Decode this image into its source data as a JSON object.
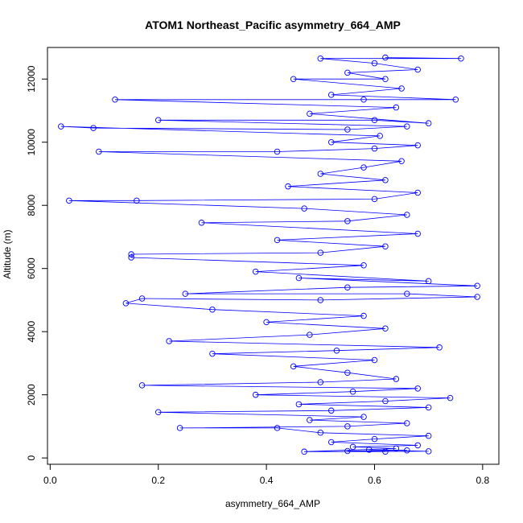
{
  "chart_data": {
    "type": "scatter",
    "title": "ATOM1 Northeast_Pacific asymmetry_664_AMP",
    "xlabel": "asymmetry_664_AMP",
    "ylabel": "Altitude (m)",
    "xlim": [
      -0.005,
      0.83
    ],
    "ylim": [
      -200,
      13000
    ],
    "xticks": [
      0.0,
      0.2,
      0.4,
      0.6,
      0.8
    ],
    "xtick_labels": [
      "0.0",
      "0.2",
      "0.4",
      "0.6",
      "0.8"
    ],
    "yticks": [
      0,
      2000,
      4000,
      6000,
      8000,
      10000,
      12000
    ],
    "ytick_labels": [
      "0",
      "2000",
      "4000",
      "6000",
      "8000",
      "10000",
      "12000"
    ],
    "grid": false,
    "legend": "none",
    "series": [
      {
        "color": "#0000ff",
        "marker": "open-circle",
        "connected": true,
        "points": [
          [
            0.62,
            200
          ],
          [
            0.55,
            220
          ],
          [
            0.66,
            240
          ],
          [
            0.59,
            260
          ],
          [
            0.7,
            210
          ],
          [
            0.47,
            200
          ],
          [
            0.64,
            300
          ],
          [
            0.56,
            350
          ],
          [
            0.68,
            400
          ],
          [
            0.52,
            500
          ],
          [
            0.6,
            600
          ],
          [
            0.7,
            700
          ],
          [
            0.5,
            800
          ],
          [
            0.42,
            950
          ],
          [
            0.24,
            950
          ],
          [
            0.55,
            1000
          ],
          [
            0.66,
            1100
          ],
          [
            0.48,
            1200
          ],
          [
            0.58,
            1300
          ],
          [
            0.2,
            1450
          ],
          [
            0.52,
            1500
          ],
          [
            0.7,
            1600
          ],
          [
            0.46,
            1700
          ],
          [
            0.62,
            1800
          ],
          [
            0.74,
            1900
          ],
          [
            0.38,
            2000
          ],
          [
            0.56,
            2100
          ],
          [
            0.68,
            2200
          ],
          [
            0.17,
            2300
          ],
          [
            0.5,
            2400
          ],
          [
            0.64,
            2500
          ],
          [
            0.55,
            2700
          ],
          [
            0.45,
            2900
          ],
          [
            0.6,
            3100
          ],
          [
            0.3,
            3300
          ],
          [
            0.53,
            3400
          ],
          [
            0.72,
            3500
          ],
          [
            0.22,
            3700
          ],
          [
            0.48,
            3900
          ],
          [
            0.62,
            4100
          ],
          [
            0.4,
            4300
          ],
          [
            0.58,
            4500
          ],
          [
            0.3,
            4700
          ],
          [
            0.14,
            4900
          ],
          [
            0.17,
            5050
          ],
          [
            0.5,
            5000
          ],
          [
            0.79,
            5100
          ],
          [
            0.66,
            5200
          ],
          [
            0.25,
            5200
          ],
          [
            0.55,
            5400
          ],
          [
            0.79,
            5450
          ],
          [
            0.46,
            5700
          ],
          [
            0.7,
            5600
          ],
          [
            0.38,
            5900
          ],
          [
            0.58,
            6100
          ],
          [
            0.15,
            6350
          ],
          [
            0.15,
            6450
          ],
          [
            0.5,
            6500
          ],
          [
            0.62,
            6700
          ],
          [
            0.42,
            6900
          ],
          [
            0.68,
            7100
          ],
          [
            0.28,
            7450
          ],
          [
            0.55,
            7500
          ],
          [
            0.66,
            7700
          ],
          [
            0.47,
            7900
          ],
          [
            0.035,
            8150
          ],
          [
            0.16,
            8150
          ],
          [
            0.6,
            8200
          ],
          [
            0.68,
            8400
          ],
          [
            0.44,
            8600
          ],
          [
            0.62,
            8800
          ],
          [
            0.5,
            9000
          ],
          [
            0.58,
            9200
          ],
          [
            0.65,
            9400
          ],
          [
            0.09,
            9700
          ],
          [
            0.42,
            9700
          ],
          [
            0.6,
            9800
          ],
          [
            0.68,
            9900
          ],
          [
            0.52,
            10000
          ],
          [
            0.61,
            10200
          ],
          [
            0.02,
            10500
          ],
          [
            0.08,
            10450
          ],
          [
            0.55,
            10400
          ],
          [
            0.66,
            10500
          ],
          [
            0.2,
            10700
          ],
          [
            0.6,
            10700
          ],
          [
            0.7,
            10600
          ],
          [
            0.48,
            10900
          ],
          [
            0.64,
            11100
          ],
          [
            0.12,
            11350
          ],
          [
            0.58,
            11350
          ],
          [
            0.75,
            11350
          ],
          [
            0.52,
            11500
          ],
          [
            0.65,
            11700
          ],
          [
            0.45,
            12000
          ],
          [
            0.62,
            12000
          ],
          [
            0.55,
            12200
          ],
          [
            0.68,
            12300
          ],
          [
            0.6,
            12500
          ],
          [
            0.5,
            12650
          ],
          [
            0.76,
            12650
          ],
          [
            0.62,
            12680
          ]
        ]
      }
    ]
  }
}
